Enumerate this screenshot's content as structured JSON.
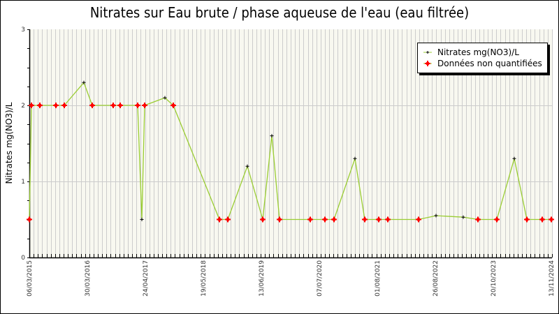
{
  "chart_data": {
    "type": "line",
    "title": "Nitrates sur Eau brute / phase aqueuse de l'eau (eau filtrée)",
    "xlabel": "",
    "ylabel": "Nitrates mg(NO3)/L",
    "ylim": [
      0,
      3
    ],
    "yticks": [
      "0",
      "1",
      "2",
      "3"
    ],
    "xtick_labels": [
      "06/03/2015",
      "30/03/2016",
      "24/04/2017",
      "19/05/2018",
      "13/06/2019",
      "07/07/2020",
      "01/08/2021",
      "26/08/2022",
      "20/10/2023",
      "13/11/2024"
    ],
    "grid": true,
    "legend_position": "top-right",
    "legend": [
      "Nitrates mg(NO3)/L",
      "Données non quantifiées"
    ],
    "colors": {
      "line": "#9acd32",
      "quantified_marker": "#000000",
      "non_quantified_marker": "#ff0000",
      "plot_background": "#f8f8f0",
      "grid": "#cccccc"
    },
    "series": [
      {
        "name": "Nitrates mg(NO3)/L",
        "points": [
          {
            "xpx": 42,
            "value": 0.5,
            "nq": true
          },
          {
            "xpx": 45,
            "value": 2.0,
            "nq": true
          },
          {
            "xpx": 57,
            "value": 2.0,
            "nq": true
          },
          {
            "xpx": 80,
            "value": 2.0,
            "nq": true
          },
          {
            "xpx": 92,
            "value": 2.0,
            "nq": true
          },
          {
            "xpx": 120,
            "value": 2.3,
            "nq": false
          },
          {
            "xpx": 132,
            "value": 2.0,
            "nq": true
          },
          {
            "xpx": 162,
            "value": 2.0,
            "nq": true
          },
          {
            "xpx": 172,
            "value": 2.0,
            "nq": true
          },
          {
            "xpx": 197,
            "value": 2.0,
            "nq": true
          },
          {
            "xpx": 203,
            "value": 0.5,
            "nq": false
          },
          {
            "xpx": 207,
            "value": 2.0,
            "nq": true
          },
          {
            "xpx": 236,
            "value": 2.1,
            "nq": false
          },
          {
            "xpx": 248,
            "value": 2.0,
            "nq": true
          },
          {
            "xpx": 314,
            "value": 0.5,
            "nq": true
          },
          {
            "xpx": 326,
            "value": 0.5,
            "nq": true
          },
          {
            "xpx": 354,
            "value": 1.2,
            "nq": false
          },
          {
            "xpx": 376,
            "value": 0.5,
            "nq": true
          },
          {
            "xpx": 389,
            "value": 1.6,
            "nq": false
          },
          {
            "xpx": 400,
            "value": 0.5,
            "nq": true
          },
          {
            "xpx": 444,
            "value": 0.5,
            "nq": true
          },
          {
            "xpx": 465,
            "value": 0.5,
            "nq": true
          },
          {
            "xpx": 478,
            "value": 0.5,
            "nq": true
          },
          {
            "xpx": 508,
            "value": 1.3,
            "nq": false
          },
          {
            "xpx": 522,
            "value": 0.5,
            "nq": true
          },
          {
            "xpx": 542,
            "value": 0.5,
            "nq": true
          },
          {
            "xpx": 555,
            "value": 0.5,
            "nq": true
          },
          {
            "xpx": 599,
            "value": 0.5,
            "nq": true
          },
          {
            "xpx": 624,
            "value": 0.55,
            "nq": false
          },
          {
            "xpx": 663,
            "value": 0.53,
            "nq": false
          },
          {
            "xpx": 684,
            "value": 0.5,
            "nq": true
          },
          {
            "xpx": 711,
            "value": 0.5,
            "nq": true
          },
          {
            "xpx": 736,
            "value": 1.3,
            "nq": false
          },
          {
            "xpx": 754,
            "value": 0.5,
            "nq": true
          },
          {
            "xpx": 776,
            "value": 0.5,
            "nq": true
          },
          {
            "xpx": 789,
            "value": 0.5,
            "nq": true
          }
        ]
      }
    ]
  }
}
